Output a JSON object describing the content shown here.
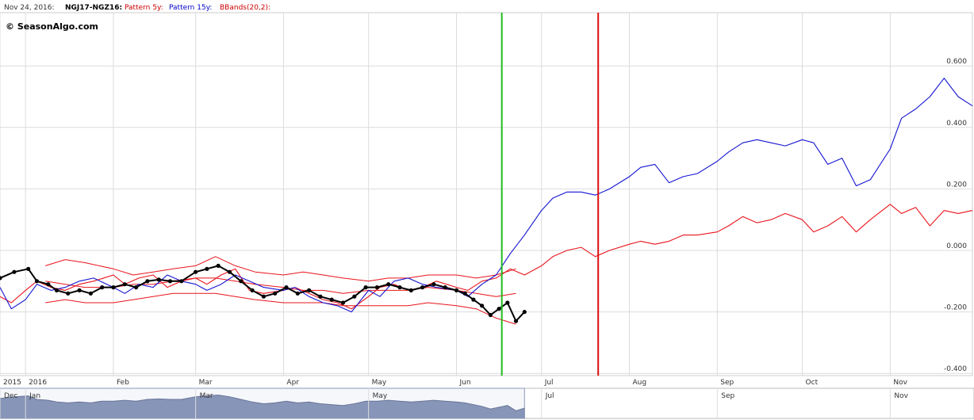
{
  "header": {
    "date": "Nov 24, 2016:",
    "symbol": "NGJ17-NGZ16:",
    "pattern5": "Pattern 5y:",
    "pattern15": "Pattern 15y:",
    "bbands": "BBands(20,2):"
  },
  "watermark": "© SeasonAlgo.com",
  "colors": {
    "price": "#000000",
    "pattern5": "#e8141c",
    "pattern15": "#1414d2",
    "bbands": "#e8141c",
    "vline_green": "#22bb22",
    "vline_red": "#dd1111",
    "header_symbol": "#000000",
    "header_pattern5": "#cc0000",
    "header_pattern15": "#0000cc",
    "header_bbands": "#cc0000",
    "navigator_fill": "#8a97b8"
  },
  "chart_data": {
    "type": "line",
    "title": "",
    "xlabel": "",
    "ylabel": "",
    "ylim": [
      -0.4,
      0.7
    ],
    "yticks": [
      0.6,
      0.4,
      0.2,
      0.0,
      -0.2,
      -0.4
    ],
    "ytick_labels": [
      "0.600",
      "0.400",
      "0.200",
      "0.000",
      "-0.200",
      "-0.400"
    ],
    "xlim": [
      "2015-12-23",
      "2016-11-30"
    ],
    "xticks": [
      {
        "date": "2015-12-23",
        "label": "2015"
      },
      {
        "date": "2016-01-01",
        "label": "2016"
      },
      {
        "date": "2016-02-01",
        "label": "Feb"
      },
      {
        "date": "2016-03-01",
        "label": "Mar"
      },
      {
        "date": "2016-04-01",
        "label": "Apr"
      },
      {
        "date": "2016-05-01",
        "label": "May"
      },
      {
        "date": "2016-06-01",
        "label": "Jun"
      },
      {
        "date": "2016-07-01",
        "label": "Jul"
      },
      {
        "date": "2016-08-01",
        "label": "Aug"
      },
      {
        "date": "2016-09-01",
        "label": "Sep"
      },
      {
        "date": "2016-10-01",
        "label": "Oct"
      },
      {
        "date": "2016-11-01",
        "label": "Nov"
      }
    ],
    "vertical_lines": [
      {
        "date": "2016-06-17",
        "color": "green"
      },
      {
        "date": "2016-07-21",
        "color": "red"
      }
    ],
    "grid": true,
    "series": [
      {
        "key": "price",
        "name": "NGJ17-NGZ16",
        "markers": true,
        "x": [
          "2015-12-23",
          "2015-12-28",
          "2016-01-02",
          "2016-01-05",
          "2016-01-09",
          "2016-01-12",
          "2016-01-16",
          "2016-01-20",
          "2016-01-24",
          "2016-01-28",
          "2016-02-01",
          "2016-02-05",
          "2016-02-09",
          "2016-02-13",
          "2016-02-17",
          "2016-02-21",
          "2016-02-25",
          "2016-03-01",
          "2016-03-05",
          "2016-03-09",
          "2016-03-13",
          "2016-03-17",
          "2016-03-21",
          "2016-03-25",
          "2016-03-29",
          "2016-04-02",
          "2016-04-06",
          "2016-04-10",
          "2016-04-14",
          "2016-04-18",
          "2016-04-22",
          "2016-04-26",
          "2016-04-30",
          "2016-05-04",
          "2016-05-08",
          "2016-05-12",
          "2016-05-16",
          "2016-05-20",
          "2016-05-24",
          "2016-05-28",
          "2016-06-01",
          "2016-06-04",
          "2016-06-07",
          "2016-06-10",
          "2016-06-13",
          "2016-06-16",
          "2016-06-19",
          "2016-06-22",
          "2016-06-25"
        ],
        "values": [
          -0.09,
          -0.07,
          -0.06,
          -0.1,
          -0.11,
          -0.13,
          -0.14,
          -0.13,
          -0.14,
          -0.12,
          -0.12,
          -0.11,
          -0.12,
          -0.1,
          -0.095,
          -0.1,
          -0.1,
          -0.07,
          -0.06,
          -0.05,
          -0.07,
          -0.1,
          -0.13,
          -0.15,
          -0.14,
          -0.12,
          -0.14,
          -0.13,
          -0.15,
          -0.16,
          -0.17,
          -0.15,
          -0.12,
          -0.12,
          -0.11,
          -0.12,
          -0.13,
          -0.12,
          -0.11,
          -0.12,
          -0.13,
          -0.14,
          -0.16,
          -0.18,
          -0.21,
          -0.19,
          -0.17,
          -0.23,
          -0.2
        ]
      },
      {
        "key": "pattern5",
        "name": "Pattern 5y",
        "x": [
          "2015-12-23",
          "2015-12-27",
          "2016-01-01",
          "2016-01-05",
          "2016-01-10",
          "2016-01-15",
          "2016-01-20",
          "2016-01-25",
          "2016-02-01",
          "2016-02-05",
          "2016-02-10",
          "2016-02-15",
          "2016-02-20",
          "2016-02-25",
          "2016-03-01",
          "2016-03-05",
          "2016-03-10",
          "2016-03-15",
          "2016-03-20",
          "2016-03-25",
          "2016-04-01",
          "2016-04-05",
          "2016-04-10",
          "2016-04-15",
          "2016-04-20",
          "2016-04-25",
          "2016-05-01",
          "2016-05-05",
          "2016-05-10",
          "2016-05-15",
          "2016-05-20",
          "2016-05-25",
          "2016-06-01",
          "2016-06-05",
          "2016-06-10",
          "2016-06-15",
          "2016-06-20",
          "2016-06-25",
          "2016-07-01",
          "2016-07-05",
          "2016-07-10",
          "2016-07-15",
          "2016-07-20",
          "2016-07-25",
          "2016-08-01",
          "2016-08-05",
          "2016-08-10",
          "2016-08-15",
          "2016-08-20",
          "2016-08-25",
          "2016-09-01",
          "2016-09-05",
          "2016-09-10",
          "2016-09-15",
          "2016-09-20",
          "2016-09-25",
          "2016-10-01",
          "2016-10-05",
          "2016-10-10",
          "2016-10-15",
          "2016-10-20",
          "2016-10-25",
          "2016-11-01",
          "2016-11-05",
          "2016-11-10",
          "2016-11-15",
          "2016-11-20",
          "2016-11-25",
          "2016-11-30"
        ],
        "values": [
          -0.15,
          -0.17,
          -0.13,
          -0.1,
          -0.12,
          -0.13,
          -0.11,
          -0.1,
          -0.08,
          -0.11,
          -0.09,
          -0.08,
          -0.12,
          -0.1,
          -0.09,
          -0.11,
          -0.08,
          -0.06,
          -0.13,
          -0.14,
          -0.13,
          -0.12,
          -0.14,
          -0.16,
          -0.17,
          -0.19,
          -0.15,
          -0.12,
          -0.11,
          -0.13,
          -0.12,
          -0.1,
          -0.12,
          -0.13,
          -0.1,
          -0.09,
          -0.06,
          -0.08,
          -0.05,
          -0.02,
          0.0,
          0.01,
          -0.02,
          0.0,
          0.02,
          0.03,
          0.02,
          0.03,
          0.05,
          0.05,
          0.06,
          0.08,
          0.11,
          0.09,
          0.1,
          0.12,
          0.1,
          0.06,
          0.08,
          0.11,
          0.06,
          0.1,
          0.15,
          0.12,
          0.14,
          0.08,
          0.13,
          0.12,
          0.13
        ]
      },
      {
        "key": "pattern15",
        "name": "Pattern 15y",
        "x": [
          "2015-12-23",
          "2015-12-27",
          "2016-01-01",
          "2016-01-05",
          "2016-01-10",
          "2016-01-15",
          "2016-01-20",
          "2016-01-25",
          "2016-02-01",
          "2016-02-05",
          "2016-02-10",
          "2016-02-15",
          "2016-02-20",
          "2016-02-25",
          "2016-03-01",
          "2016-03-05",
          "2016-03-10",
          "2016-03-15",
          "2016-03-20",
          "2016-03-25",
          "2016-04-01",
          "2016-04-05",
          "2016-04-10",
          "2016-04-15",
          "2016-04-20",
          "2016-04-25",
          "2016-05-01",
          "2016-05-05",
          "2016-05-10",
          "2016-05-15",
          "2016-05-20",
          "2016-05-25",
          "2016-06-01",
          "2016-06-05",
          "2016-06-10",
          "2016-06-15",
          "2016-06-20",
          "2016-06-25",
          "2016-07-01",
          "2016-07-05",
          "2016-07-10",
          "2016-07-15",
          "2016-07-20",
          "2016-07-25",
          "2016-08-01",
          "2016-08-05",
          "2016-08-10",
          "2016-08-15",
          "2016-08-20",
          "2016-08-25",
          "2016-09-01",
          "2016-09-05",
          "2016-09-10",
          "2016-09-15",
          "2016-09-20",
          "2016-09-25",
          "2016-10-01",
          "2016-10-05",
          "2016-10-10",
          "2016-10-15",
          "2016-10-20",
          "2016-10-25",
          "2016-11-01",
          "2016-11-05",
          "2016-11-10",
          "2016-11-15",
          "2016-11-20",
          "2016-11-25",
          "2016-11-30"
        ],
        "values": [
          -0.12,
          -0.19,
          -0.16,
          -0.11,
          -0.13,
          -0.12,
          -0.1,
          -0.09,
          -0.12,
          -0.14,
          -0.11,
          -0.12,
          -0.08,
          -0.1,
          -0.11,
          -0.13,
          -0.11,
          -0.08,
          -0.1,
          -0.12,
          -0.13,
          -0.12,
          -0.15,
          -0.17,
          -0.18,
          -0.2,
          -0.13,
          -0.15,
          -0.1,
          -0.09,
          -0.11,
          -0.12,
          -0.13,
          -0.15,
          -0.11,
          -0.08,
          -0.01,
          0.05,
          0.13,
          0.17,
          0.19,
          0.19,
          0.18,
          0.2,
          0.24,
          0.27,
          0.28,
          0.22,
          0.24,
          0.25,
          0.29,
          0.32,
          0.35,
          0.36,
          0.35,
          0.34,
          0.36,
          0.35,
          0.28,
          0.3,
          0.21,
          0.23,
          0.33,
          0.43,
          0.46,
          0.5,
          0.56,
          0.5,
          0.47
        ]
      },
      {
        "key": "bb_upper",
        "name": "BBands(20,2) upper",
        "x": [
          "2016-01-08",
          "2016-01-15",
          "2016-01-22",
          "2016-02-01",
          "2016-02-08",
          "2016-02-15",
          "2016-02-22",
          "2016-03-01",
          "2016-03-08",
          "2016-03-15",
          "2016-03-22",
          "2016-04-01",
          "2016-04-08",
          "2016-04-15",
          "2016-04-22",
          "2016-05-01",
          "2016-05-08",
          "2016-05-15",
          "2016-05-22",
          "2016-06-01",
          "2016-06-08",
          "2016-06-15",
          "2016-06-22"
        ],
        "values": [
          -0.05,
          -0.03,
          -0.04,
          -0.06,
          -0.08,
          -0.07,
          -0.06,
          -0.05,
          -0.02,
          -0.05,
          -0.07,
          -0.08,
          -0.07,
          -0.08,
          -0.09,
          -0.1,
          -0.09,
          -0.09,
          -0.08,
          -0.08,
          -0.09,
          -0.08,
          -0.06
        ]
      },
      {
        "key": "bb_lower",
        "name": "BBands(20,2) lower",
        "x": [
          "2016-01-08",
          "2016-01-15",
          "2016-01-22",
          "2016-02-01",
          "2016-02-08",
          "2016-02-15",
          "2016-02-22",
          "2016-03-01",
          "2016-03-08",
          "2016-03-15",
          "2016-03-22",
          "2016-04-01",
          "2016-04-08",
          "2016-04-15",
          "2016-04-22",
          "2016-05-01",
          "2016-05-08",
          "2016-05-15",
          "2016-05-22",
          "2016-06-01",
          "2016-06-08",
          "2016-06-15",
          "2016-06-22"
        ],
        "values": [
          -0.17,
          -0.16,
          -0.17,
          -0.17,
          -0.16,
          -0.15,
          -0.14,
          -0.14,
          -0.14,
          -0.15,
          -0.16,
          -0.17,
          -0.17,
          -0.17,
          -0.18,
          -0.18,
          -0.18,
          -0.18,
          -0.17,
          -0.18,
          -0.19,
          -0.22,
          -0.24
        ]
      },
      {
        "key": "bb_mid",
        "name": "BBands(20,2) middle",
        "x": [
          "2016-01-08",
          "2016-01-15",
          "2016-01-22",
          "2016-02-01",
          "2016-02-08",
          "2016-02-15",
          "2016-02-22",
          "2016-03-01",
          "2016-03-08",
          "2016-03-15",
          "2016-03-22",
          "2016-04-01",
          "2016-04-08",
          "2016-04-15",
          "2016-04-22",
          "2016-05-01",
          "2016-05-08",
          "2016-05-15",
          "2016-05-22",
          "2016-06-01",
          "2016-06-08",
          "2016-06-15",
          "2016-06-22"
        ],
        "values": [
          -0.1,
          -0.11,
          -0.12,
          -0.12,
          -0.11,
          -0.11,
          -0.1,
          -0.09,
          -0.09,
          -0.1,
          -0.11,
          -0.12,
          -0.13,
          -0.13,
          -0.14,
          -0.13,
          -0.13,
          -0.13,
          -0.12,
          -0.13,
          -0.14,
          -0.15,
          -0.14
        ]
      }
    ],
    "navigator": {
      "labels": [
        {
          "date": "2015-12-23",
          "label": "Dec"
        },
        {
          "date": "2016-01-01",
          "label": "Jan"
        },
        {
          "date": "2016-03-01",
          "label": "Mar"
        },
        {
          "date": "2016-05-01",
          "label": "May"
        },
        {
          "date": "2016-07-01",
          "label": "Jul"
        },
        {
          "date": "2016-09-01",
          "label": "Sep"
        },
        {
          "date": "2016-11-01",
          "label": "Nov"
        }
      ],
      "selected_range": [
        "2015-12-23",
        "2016-06-25"
      ]
    }
  }
}
